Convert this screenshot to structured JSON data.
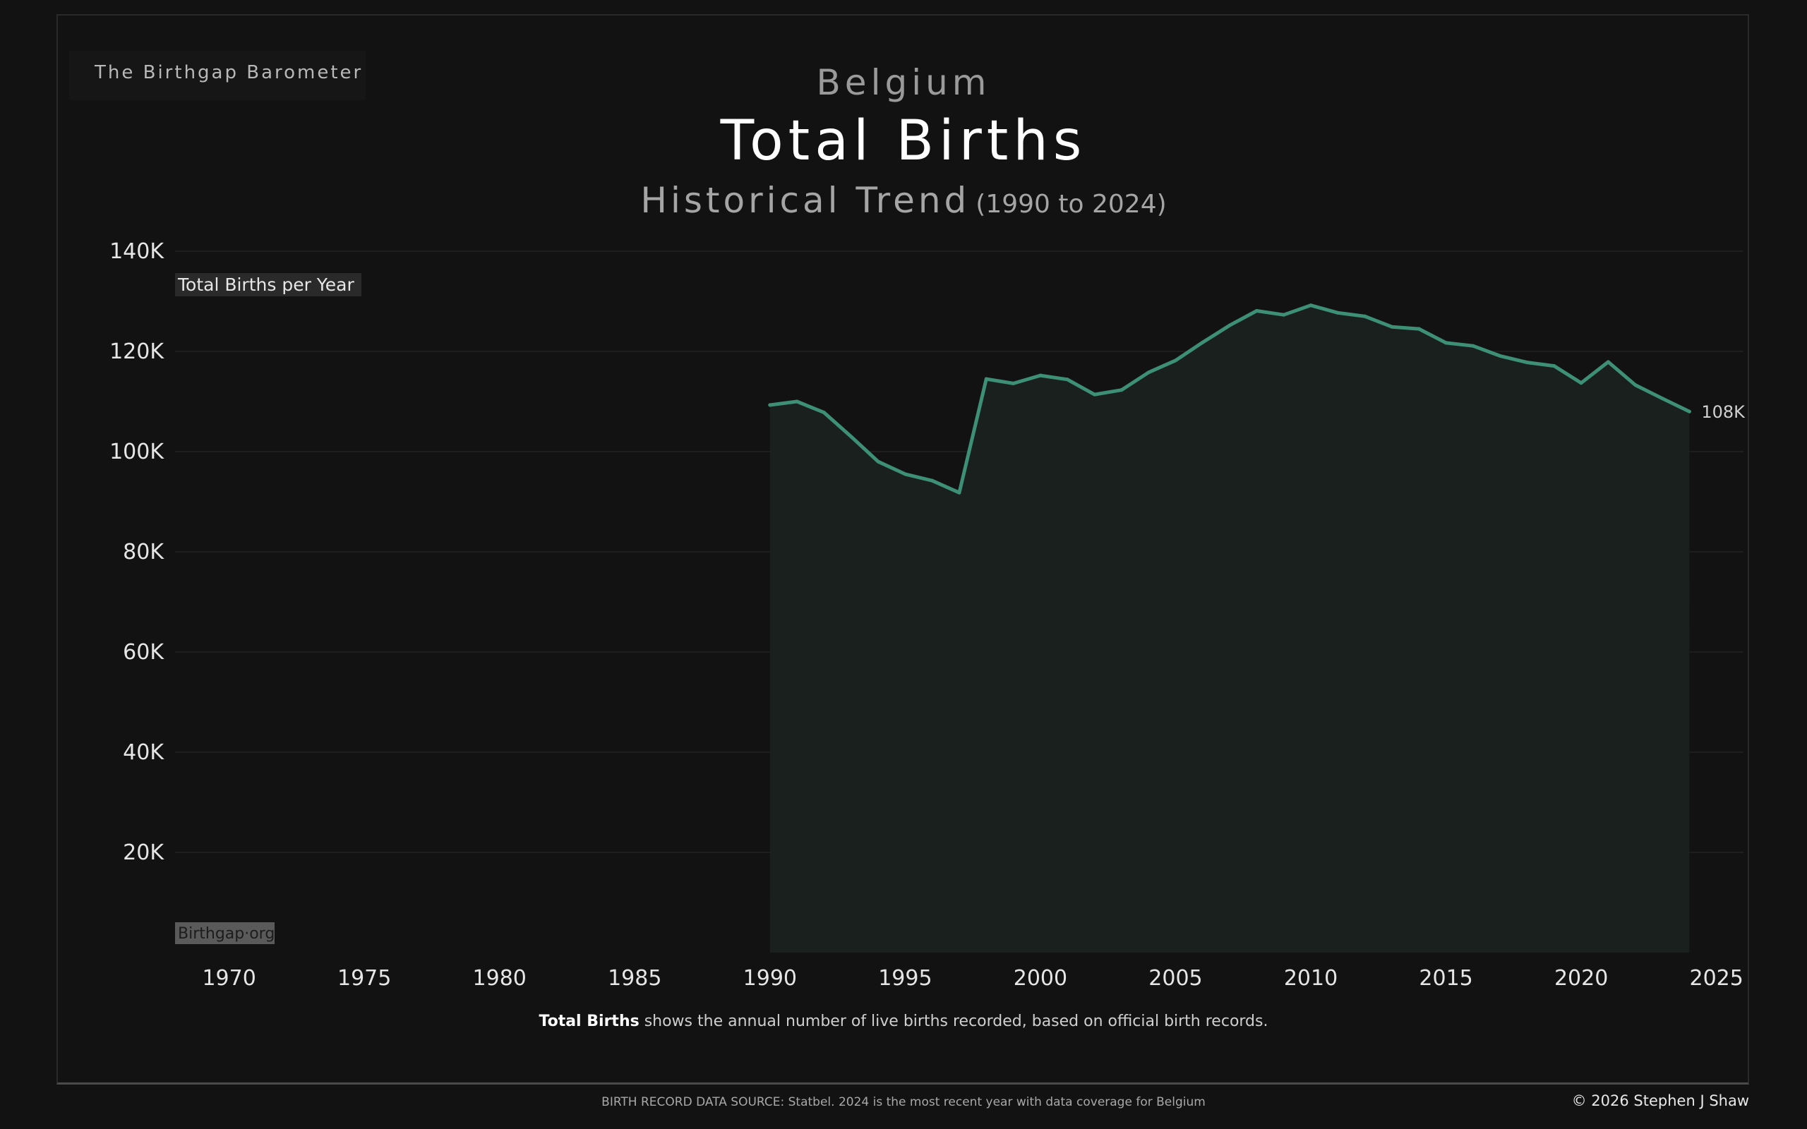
{
  "brand": "The Birthgap Barometer",
  "header": {
    "country": "Belgium",
    "title": "Total Births",
    "subtitle": "Historical Trend",
    "range": "(1990 to 2024)"
  },
  "chart_labels": {
    "series_label": "Total Births per Year",
    "watermark": "Birthgap·org",
    "end_value_label": "108K"
  },
  "caption": {
    "bold": "Total Births",
    "rest": " shows the annual number of live births recorded, based on official birth records."
  },
  "footer": {
    "source": "BIRTH RECORD DATA SOURCE: Statbel. 2024 is the most recent year with data coverage for Belgium",
    "copyright": "© 2026 Stephen J Shaw"
  },
  "colors": {
    "background": "#121212",
    "line": "#3d8f75",
    "area": "#19201e",
    "grid": "#222222"
  },
  "chart_data": {
    "type": "area",
    "title": "Total Births",
    "x_ticks": [
      1970,
      1975,
      1980,
      1985,
      1990,
      1995,
      2000,
      2005,
      2010,
      2015,
      2020,
      2025
    ],
    "y_ticks": [
      20000,
      40000,
      60000,
      80000,
      100000,
      120000,
      140000
    ],
    "y_tick_labels": [
      "20K",
      "40K",
      "60K",
      "80K",
      "100K",
      "120K",
      "140K"
    ],
    "xlim": [
      1968,
      2026
    ],
    "ylim": [
      0,
      140000
    ],
    "grid": true,
    "series": [
      {
        "name": "Total Births per Year",
        "x": [
          1990,
          1991,
          1992,
          1993,
          1994,
          1995,
          1996,
          1997,
          1998,
          1999,
          2000,
          2001,
          2002,
          2003,
          2004,
          2005,
          2006,
          2007,
          2008,
          2009,
          2010,
          2011,
          2012,
          2013,
          2014,
          2015,
          2016,
          2017,
          2018,
          2019,
          2020,
          2021,
          2022,
          2023,
          2024
        ],
        "values": [
          109300,
          110000,
          107800,
          103000,
          98000,
          95500,
          94200,
          91800,
          114500,
          113600,
          115200,
          114400,
          111400,
          112300,
          115800,
          118200,
          121800,
          125200,
          128100,
          127300,
          129200,
          127700,
          127000,
          124900,
          124500,
          121700,
          121100,
          119100,
          117800,
          117100,
          113700,
          117900,
          113300,
          110600,
          108000
        ]
      }
    ]
  }
}
